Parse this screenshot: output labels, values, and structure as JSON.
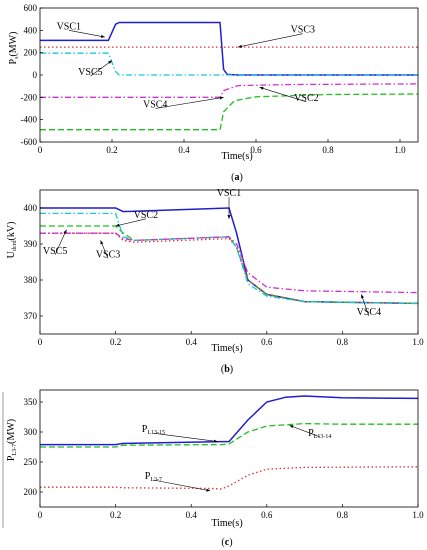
{
  "chart_data": [
    {
      "type": "line",
      "panel_label": {
        "open": "(",
        "letter": "a",
        "close": ")"
      },
      "xlabel": "Time(s)",
      "ylabel": {
        "main": "P",
        "sub": "s",
        "unit": "(MW)"
      },
      "xlim": [
        0,
        1.05
      ],
      "ylim": [
        -600,
        600
      ],
      "xticks": [
        0,
        0.2,
        0.4,
        0.6,
        0.8,
        1.0
      ],
      "xtick_labels": [
        "0",
        "0.2",
        "0.4",
        "0.6",
        "0.8",
        "1.0"
      ],
      "yticks": [
        -600,
        -400,
        -200,
        0,
        200,
        400,
        600
      ],
      "ytick_labels": [
        "-600",
        "-400",
        "-200",
        "0",
        "200",
        "400",
        "600"
      ],
      "grid": false,
      "series": [
        {
          "name": "VSC1",
          "color": "#1f1fd0",
          "dash": "solid",
          "x": [
            0,
            0.19,
            0.21,
            0.22,
            0.5,
            0.51,
            0.52,
            0.55,
            1.05
          ],
          "y": [
            310,
            310,
            455,
            470,
            470,
            50,
            5,
            0,
            0
          ]
        },
        {
          "name": "VSC3",
          "color": "#e03030",
          "dash": "dot",
          "x": [
            0,
            1.05
          ],
          "y": [
            250,
            250
          ]
        },
        {
          "name": "VSC5",
          "color": "#19c8d8",
          "dash": "dashdot",
          "x": [
            0,
            0.19,
            0.21,
            0.22,
            0.5,
            0.51,
            1.05
          ],
          "y": [
            195,
            195,
            30,
            0,
            0,
            0,
            0
          ]
        },
        {
          "name": "VSC4",
          "color": "#d030d0",
          "dash": "dashdot",
          "x": [
            0,
            0.5,
            0.51,
            0.55,
            0.7,
            1.05
          ],
          "y": [
            -200,
            -200,
            -140,
            -95,
            -85,
            -80
          ]
        },
        {
          "name": "VSC2",
          "color": "#20c020",
          "dash": "dash",
          "x": [
            0,
            0.5,
            0.51,
            0.54,
            0.6,
            0.8,
            1.05
          ],
          "y": [
            -490,
            -490,
            -330,
            -230,
            -195,
            -175,
            -170
          ]
        }
      ],
      "annotations": [
        {
          "text": "VSC1",
          "pt": [
            0.18,
            340
          ],
          "lx": 0.08,
          "ly": 400
        },
        {
          "text": "VSC3",
          "pt": [
            0.55,
            250
          ],
          "lx": 0.73,
          "ly": 370
        },
        {
          "text": "VSC5",
          "pt": [
            0.2,
            130
          ],
          "lx": 0.14,
          "ly": -10
        },
        {
          "text": "VSC4",
          "pt": [
            0.51,
            -200
          ],
          "lx": 0.32,
          "ly": -300
        },
        {
          "text": "VSC2",
          "pt": [
            0.61,
            -110
          ],
          "lx": 0.74,
          "ly": -240
        }
      ]
    },
    {
      "type": "line",
      "panel_label": {
        "open": "(",
        "letter": "b",
        "close": ")"
      },
      "xlabel": "Time(s)",
      "ylabel": {
        "main": "U",
        "sub": "dcrd",
        "unit": "(kV)"
      },
      "xlim": [
        0,
        1.0
      ],
      "ylim": [
        365,
        405
      ],
      "xticks": [
        0,
        0.2,
        0.4,
        0.6,
        0.8,
        1.0
      ],
      "xtick_labels": [
        "0",
        "0.2",
        "0.4",
        "0.6",
        "0.8",
        "1.0"
      ],
      "yticks": [
        370,
        380,
        390,
        400
      ],
      "ytick_labels": [
        "370",
        "380",
        "390",
        "400"
      ],
      "grid": false,
      "series": [
        {
          "name": "VSC1",
          "color": "#1f1fd0",
          "dash": "solid",
          "x": [
            0,
            0.2,
            0.22,
            0.5,
            0.52,
            0.55,
            0.6,
            0.7,
            1.0
          ],
          "y": [
            400,
            400,
            399,
            400,
            393,
            380,
            376,
            374,
            373.5
          ]
        },
        {
          "name": "VSC2",
          "color": "#20c020",
          "dash": "dash",
          "x": [
            0,
            0.2,
            0.22,
            0.25,
            0.5,
            0.52,
            0.55,
            0.6,
            0.7,
            1.0
          ],
          "y": [
            395,
            395,
            393,
            391,
            392,
            389,
            380,
            376,
            374,
            373.5
          ]
        },
        {
          "name": "VSC3",
          "color": "#e03030",
          "dash": "dot",
          "x": [
            0,
            0.2,
            0.22,
            0.25,
            0.5,
            0.52,
            0.55,
            0.6,
            0.7,
            1.0
          ],
          "y": [
            393,
            393,
            391,
            390.5,
            391.5,
            389,
            380,
            376,
            374,
            373.5
          ]
        },
        {
          "name": "VSC5",
          "color": "#19c8d8",
          "dash": "dashdot",
          "x": [
            0,
            0.2,
            0.22,
            0.25,
            0.5,
            0.52,
            0.55,
            0.6,
            0.7,
            1.0
          ],
          "y": [
            398.5,
            398.5,
            392,
            391,
            392,
            389,
            379,
            375.5,
            374,
            373.5
          ]
        },
        {
          "name": "VSC4",
          "color": "#d030d0",
          "dash": "dashdot",
          "x": [
            0,
            0.2,
            0.22,
            0.25,
            0.5,
            0.52,
            0.55,
            0.6,
            0.7,
            1.0
          ],
          "y": [
            393,
            393,
            391.5,
            391,
            392,
            390,
            382,
            378,
            377,
            376.5
          ]
        }
      ],
      "annotations": [
        {
          "text": "VSC1",
          "pt": [
            0.5,
            397
          ],
          "lx": 0.5,
          "ly": 403
        },
        {
          "text": "VSC2",
          "pt": [
            0.2,
            395
          ],
          "lx": 0.28,
          "ly": 397
        },
        {
          "text": "VSC5",
          "pt": [
            0.07,
            394
          ],
          "lx": 0.04,
          "ly": 387
        },
        {
          "text": "VSC3",
          "pt": [
            0.16,
            391
          ],
          "lx": 0.18,
          "ly": 386
        },
        {
          "text": "VSC4",
          "pt": [
            0.85,
            376
          ],
          "lx": 0.87,
          "ly": 370
        }
      ]
    },
    {
      "type": "line",
      "panel_label": {
        "open": "(",
        "letter": "c",
        "close": ")"
      },
      "xlabel": "Time(s)",
      "ylabel": {
        "main": "P",
        "sub": "L3-7",
        "unit": "(MW)"
      },
      "xlim": [
        0,
        1.0
      ],
      "ylim": [
        175,
        370
      ],
      "xticks": [
        0,
        0.2,
        0.4,
        0.6,
        0.8,
        1.0
      ],
      "xtick_labels": [
        "0",
        "0.2",
        "0.4",
        "0.6",
        "0.8",
        "1.0"
      ],
      "yticks": [
        200,
        250,
        300,
        350
      ],
      "ytick_labels": [
        "200",
        "250",
        "300",
        "350"
      ],
      "grid": false,
      "series": [
        {
          "name": "L13-15",
          "color": "#1f1fd0",
          "dash": "solid",
          "x": [
            0,
            0.2,
            0.22,
            0.48,
            0.5,
            0.55,
            0.6,
            0.65,
            0.7,
            0.8,
            1.0
          ],
          "y": [
            279,
            279,
            281,
            284,
            284,
            320,
            350,
            358,
            360,
            357,
            356
          ]
        },
        {
          "name": "L13-14",
          "color": "#20c020",
          "dash": "dash",
          "x": [
            0,
            0.2,
            0.22,
            0.48,
            0.5,
            0.55,
            0.6,
            0.7,
            0.8,
            1.0
          ],
          "y": [
            275,
            275,
            278,
            279,
            280,
            300,
            310,
            314,
            313,
            313
          ]
        },
        {
          "name": "L3-7",
          "color": "#e03030",
          "dash": "dot",
          "x": [
            0,
            0.2,
            0.22,
            0.45,
            0.48,
            0.5,
            0.55,
            0.6,
            0.7,
            1.0
          ],
          "y": [
            208,
            208,
            207,
            206,
            205,
            210,
            228,
            238,
            241,
            242
          ]
        }
      ],
      "annotations": [
        {
          "text": "P",
          "sub": "L13-15",
          "pt": [
            0.47,
            284
          ],
          "lx": 0.3,
          "ly": 298
        },
        {
          "text": "P",
          "sub": "L13-14",
          "pt": [
            0.66,
            311
          ],
          "lx": 0.74,
          "ly": 292
        },
        {
          "text": "P",
          "sub": "L3-7",
          "pt": [
            0.45,
            202
          ],
          "lx": 0.3,
          "ly": 220
        }
      ]
    }
  ]
}
